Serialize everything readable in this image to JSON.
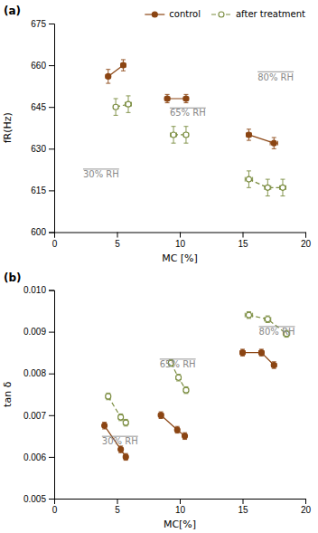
{
  "chart_data": [
    {
      "type": "line",
      "title": "(a)",
      "xlabel": "MC [%]",
      "ylabel": "fR(Hz)",
      "xlim": [
        0,
        20
      ],
      "ylim": [
        600,
        675
      ],
      "xticks": [
        0,
        5,
        10,
        15,
        20
      ],
      "yticks": [
        600,
        615,
        630,
        645,
        660,
        675
      ],
      "legend": "upper right",
      "series": [
        {
          "name": "control",
          "color": "#8B4513",
          "line_style": "solid",
          "marker": "circle",
          "x": [
            4.3,
            5.5
          ],
          "values": [
            656,
            660
          ],
          "x_errors": [
            0.2,
            0.2
          ],
          "errors": [
            2.5,
            2.0
          ]
        },
        {
          "color": "#8B4513",
          "line_style": "solid",
          "marker": "circle",
          "x": [
            9.0,
            10.5
          ],
          "values": [
            648,
            648
          ],
          "x_errors": [
            0.2,
            0.2
          ],
          "errors": [
            1.5,
            1.5
          ]
        },
        {
          "color": "#8B4513",
          "line_style": "solid",
          "marker": "circle",
          "x": [
            15.5,
            17.5
          ],
          "values": [
            635,
            632
          ],
          "x_errors": [
            0.2,
            0.3
          ],
          "errors": [
            2,
            2
          ]
        },
        {
          "name": "after treatment",
          "color": "#7a8c3f",
          "line_style": "dashed",
          "marker": "open-circle",
          "x": [
            4.9,
            5.9
          ],
          "values": [
            645,
            646
          ],
          "x_errors": [
            0.2,
            0.25
          ],
          "errors": [
            3,
            3
          ]
        },
        {
          "color": "#7a8c3f",
          "line_style": "dashed",
          "marker": "open-circle",
          "x": [
            9.5,
            10.5
          ],
          "values": [
            635,
            635
          ],
          "x_errors": [
            0.25,
            0.2
          ],
          "errors": [
            3,
            3
          ]
        },
        {
          "color": "#7a8c3f",
          "line_style": "dashed",
          "marker": "open-circle",
          "x": [
            15.5,
            17.0,
            18.2
          ],
          "values": [
            619,
            616,
            616
          ],
          "x_errors": [
            0.3,
            0.25,
            0.25
          ],
          "errors": [
            3,
            3,
            3
          ]
        }
      ],
      "annotations": [
        {
          "text": "30% RH",
          "x": 2.3,
          "y": 622
        },
        {
          "text": "65% RH",
          "x": 9.2,
          "y": 644
        },
        {
          "text": "80% RH",
          "x": 16.2,
          "y": 657
        }
      ]
    },
    {
      "type": "line",
      "title": "(b)",
      "xlabel": "MC[%]",
      "ylabel": "tan δ",
      "xlim": [
        0,
        20
      ],
      "ylim": [
        0.005,
        0.01
      ],
      "xticks": [
        0,
        5,
        10,
        15,
        20
      ],
      "yticks": [
        0.005,
        0.006,
        0.007,
        0.008,
        0.009,
        {
          "value": 0.01,
          "label": "0.010"
        }
      ],
      "series": [
        {
          "color": "#8B4513",
          "line_style": "solid",
          "marker": "circle",
          "x": [
            4.0,
            5.3,
            5.7
          ],
          "values": [
            0.00675,
            0.00618,
            0.006
          ],
          "x_errors": [
            0.15,
            0.15,
            0.15
          ],
          "errors": [
            8e-05,
            8e-05,
            8e-05
          ]
        },
        {
          "color": "#8B4513",
          "line_style": "solid",
          "marker": "circle",
          "x": [
            8.5,
            9.8,
            10.4
          ],
          "values": [
            0.007,
            0.00665,
            0.0065
          ],
          "x_errors": [
            0.2,
            0.15,
            0.15
          ],
          "errors": [
            8e-05,
            8e-05,
            8e-05
          ]
        },
        {
          "color": "#8B4513",
          "line_style": "solid",
          "marker": "circle",
          "x": [
            15.0,
            16.5,
            17.5
          ],
          "values": [
            0.0085,
            0.0085,
            0.0082
          ],
          "x_errors": [
            0.2,
            0.2,
            0.2
          ],
          "errors": [
            8e-05,
            8e-05,
            8e-05
          ]
        },
        {
          "color": "#7a8c3f",
          "line_style": "dashed",
          "marker": "open-circle",
          "x": [
            4.3,
            5.3,
            5.7
          ],
          "values": [
            0.00745,
            0.00695,
            0.00682
          ],
          "x_errors": [
            0.2,
            0.2,
            0.2
          ],
          "errors": [
            8e-05,
            8e-05,
            8e-05
          ]
        },
        {
          "color": "#7a8c3f",
          "line_style": "dashed",
          "marker": "open-circle",
          "x": [
            9.3,
            9.9,
            10.5
          ],
          "values": [
            0.00825,
            0.0079,
            0.0076
          ],
          "x_errors": [
            0.2,
            0.2,
            0.2
          ],
          "errors": [
            8e-05,
            8e-05,
            8e-05
          ]
        },
        {
          "color": "#7a8c3f",
          "line_style": "dashed",
          "marker": "open-circle",
          "x": [
            15.5,
            17.0,
            18.5
          ],
          "values": [
            0.0094,
            0.0093,
            0.00895
          ],
          "x_errors": [
            0.3,
            0.25,
            0.25
          ],
          "errors": [
            8e-05,
            8e-05,
            8e-05
          ]
        }
      ],
      "annotations": [
        {
          "text": "30% RH",
          "x": 3.8,
          "y": 0.00645
        },
        {
          "text": "65% RH",
          "x": 8.4,
          "y": 0.0083
        },
        {
          "text": "80% RH",
          "x": 16.3,
          "y": 0.00908
        }
      ]
    }
  ]
}
